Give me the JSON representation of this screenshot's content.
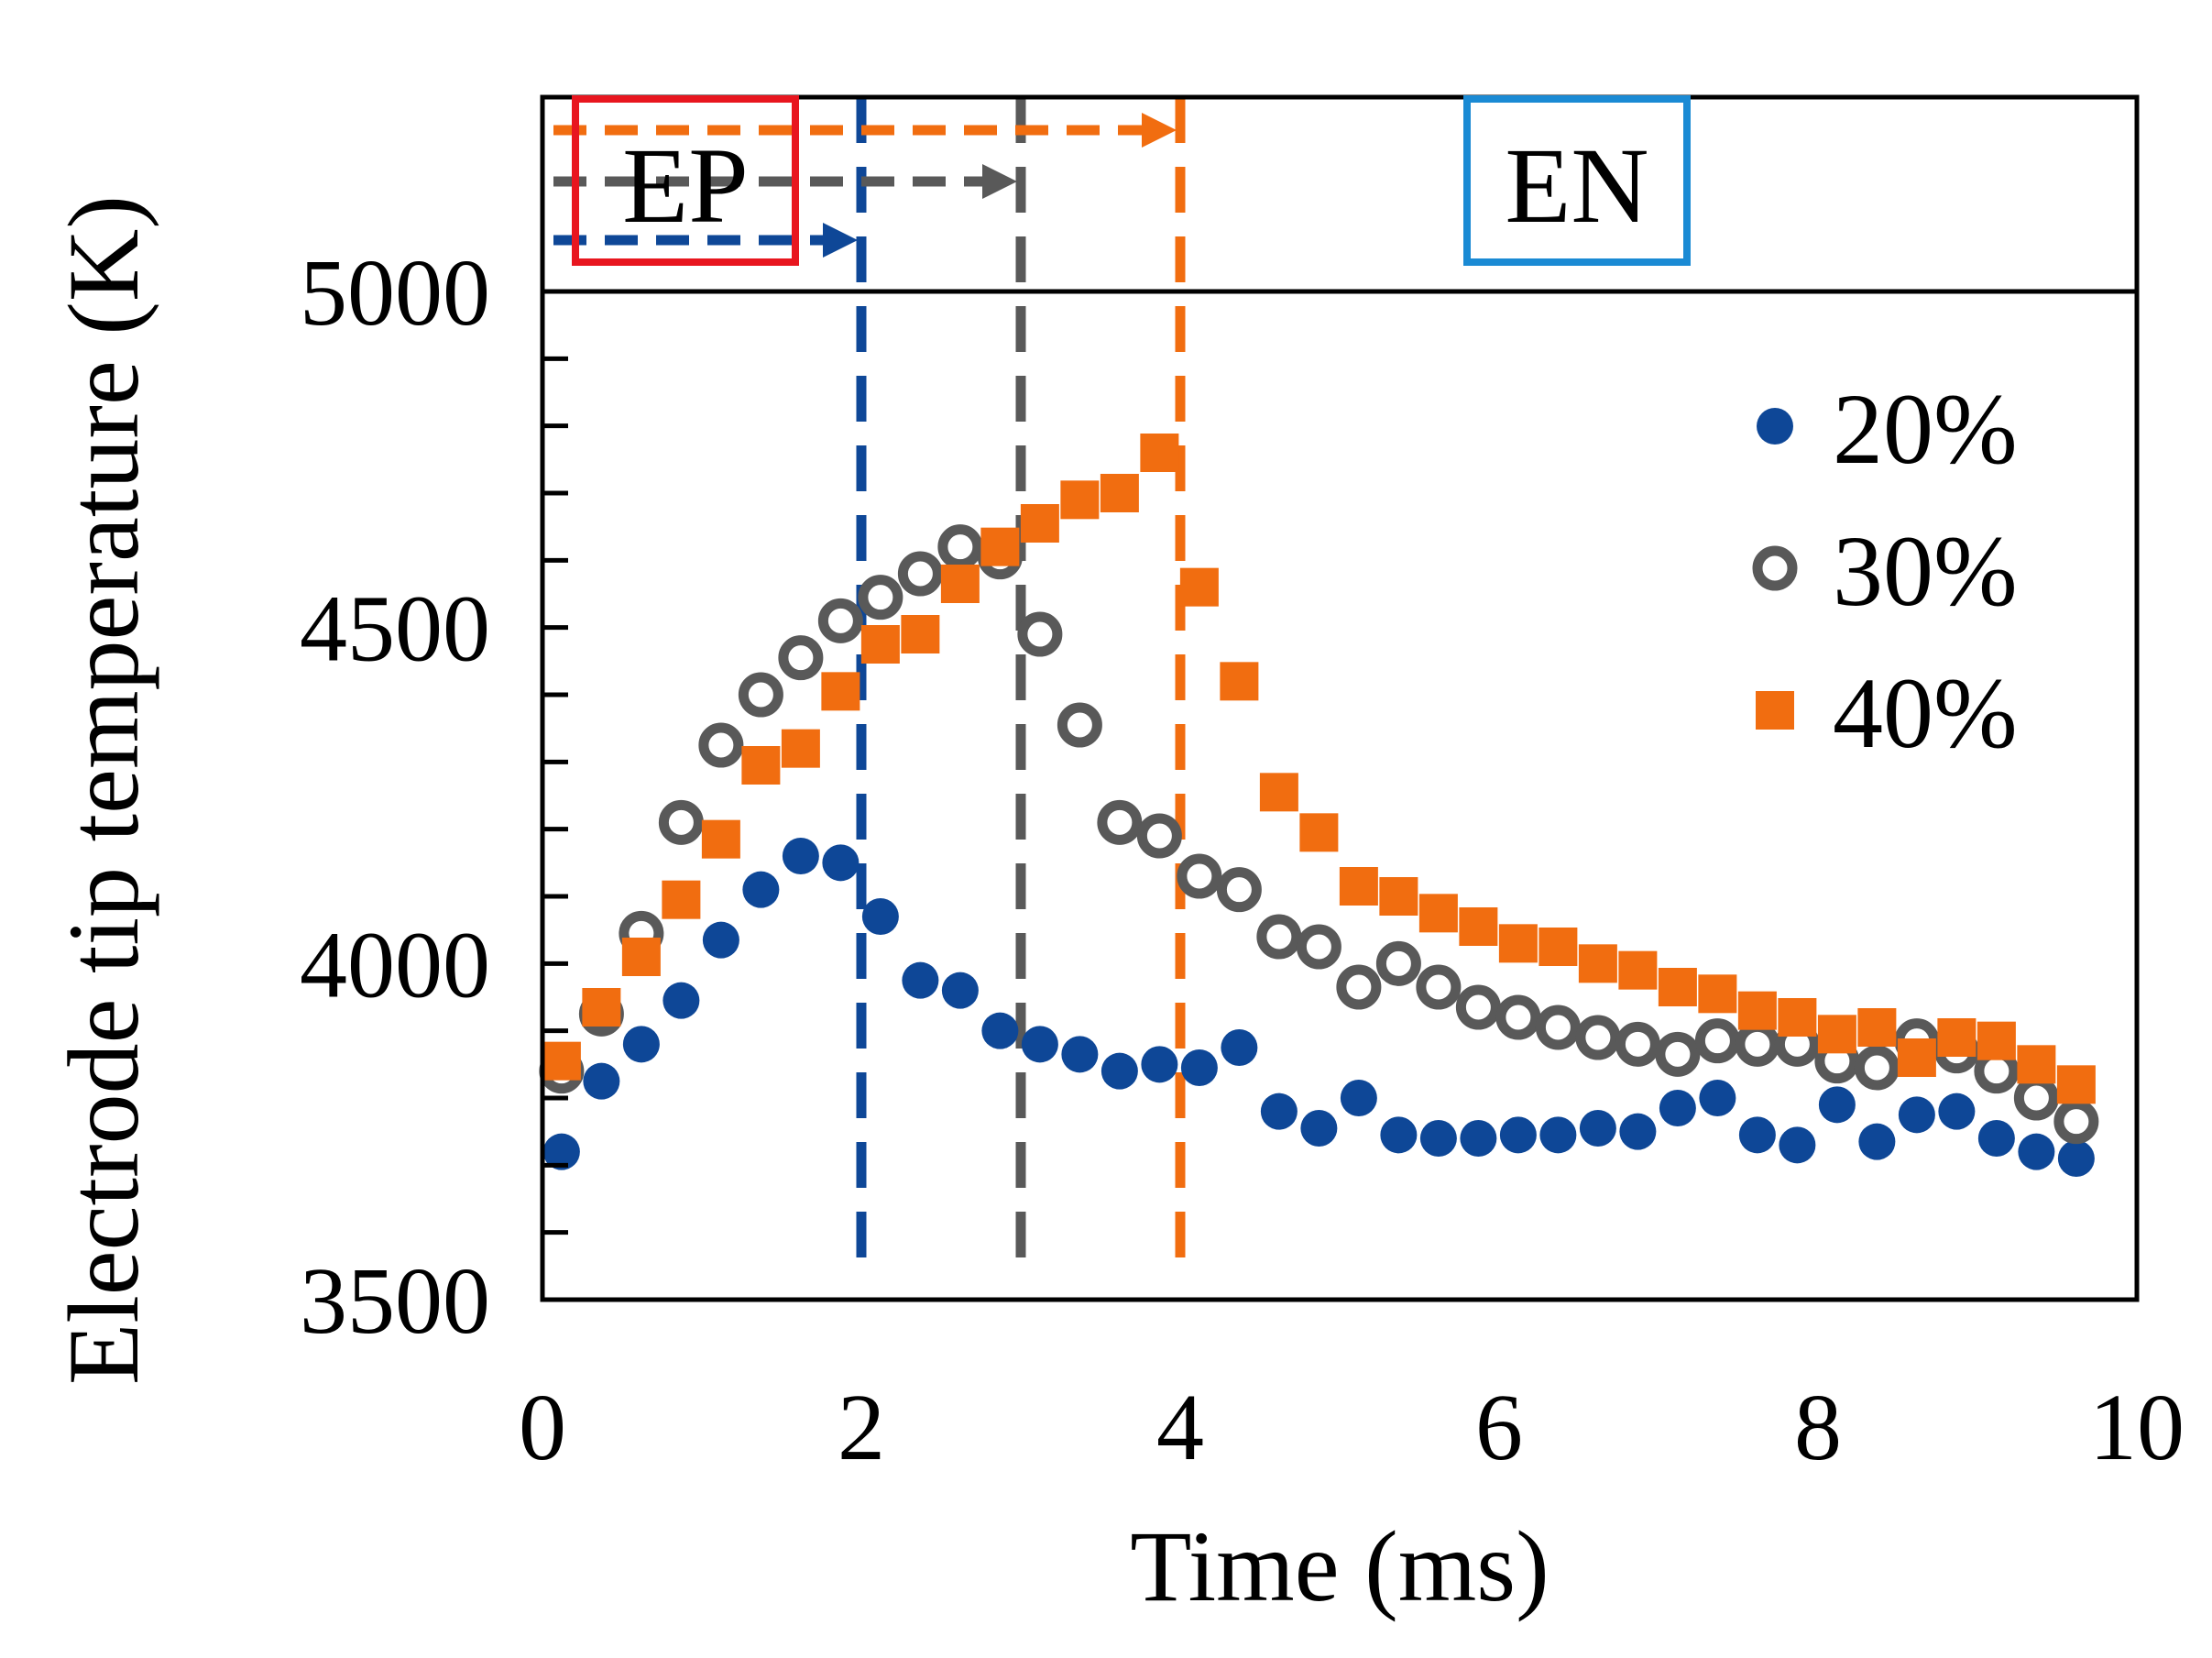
{
  "chart_data": {
    "type": "scatter",
    "title": "",
    "xlabel": "Time (ms)",
    "ylabel": "Electrode tip temperature (K)",
    "xlim": [
      0,
      10
    ],
    "ylim": [
      3500,
      5000
    ],
    "xticks": [
      0,
      2,
      4,
      6,
      8,
      10
    ],
    "yticks": [
      3500,
      4000,
      4500,
      5000
    ],
    "x_tick_labels": [
      "0",
      "2",
      "4",
      "6",
      "8",
      "10"
    ],
    "y_tick_labels": [
      "3500",
      "4000",
      "4500",
      "5000"
    ],
    "legend_position": "right",
    "series": [
      {
        "name": "20%",
        "color": "#0e4797",
        "marker": "filled-circle",
        "ep_end_ms": 2,
        "x": [
          0.12,
          0.37,
          0.62,
          0.87,
          1.12,
          1.37,
          1.62,
          1.87,
          2.12,
          2.37,
          2.62,
          2.87,
          3.12,
          3.37,
          3.62,
          3.87,
          4.12,
          4.37,
          4.62,
          4.87,
          5.12,
          5.37,
          5.62,
          5.87,
          6.12,
          6.37,
          6.62,
          6.87,
          7.12,
          7.37,
          7.62,
          7.87,
          8.12,
          8.37,
          8.62,
          8.87,
          9.12,
          9.37,
          9.62
        ],
        "values": [
          3720,
          3825,
          3880,
          3945,
          4035,
          4110,
          4160,
          4150,
          4070,
          3975,
          3960,
          3900,
          3880,
          3865,
          3840,
          3850,
          3845,
          3875,
          3780,
          3755,
          3800,
          3745,
          3740,
          3740,
          3745,
          3745,
          3755,
          3750,
          3785,
          3800,
          3745,
          3730,
          3790,
          3735,
          3775,
          3780,
          3740,
          3720,
          3710
        ]
      },
      {
        "name": "30%",
        "color": "#595959",
        "marker": "open-circle",
        "ep_end_ms": 3,
        "x": [
          0.12,
          0.37,
          0.62,
          0.87,
          1.12,
          1.37,
          1.62,
          1.87,
          2.12,
          2.37,
          2.62,
          2.87,
          3.12,
          3.37,
          3.62,
          3.87,
          4.12,
          4.37,
          4.62,
          4.87,
          5.12,
          5.37,
          5.62,
          5.87,
          6.12,
          6.37,
          6.62,
          6.87,
          7.12,
          7.37,
          7.62,
          7.87,
          8.12,
          8.37,
          8.62,
          8.87,
          9.12,
          9.37,
          9.62
        ],
        "values": [
          3840,
          3925,
          4045,
          4210,
          4325,
          4400,
          4455,
          4510,
          4545,
          4580,
          4620,
          4605,
          4490,
          4355,
          4210,
          4190,
          4130,
          4110,
          4040,
          4025,
          3965,
          4000,
          3965,
          3935,
          3920,
          3905,
          3890,
          3880,
          3865,
          3885,
          3880,
          3880,
          3855,
          3845,
          3885,
          3870,
          3840,
          3800,
          3765
        ]
      },
      {
        "name": "40%",
        "color": "#f16d10",
        "marker": "filled-square",
        "ep_end_ms": 4,
        "x": [
          0.12,
          0.37,
          0.62,
          0.87,
          1.12,
          1.37,
          1.62,
          1.87,
          2.12,
          2.37,
          2.62,
          2.87,
          3.12,
          3.37,
          3.62,
          3.87,
          4.12,
          4.37,
          4.62,
          4.87,
          5.12,
          5.37,
          5.62,
          5.87,
          6.12,
          6.37,
          6.62,
          6.87,
          7.12,
          7.37,
          7.62,
          7.87,
          8.12,
          8.37,
          8.62,
          8.87,
          9.12,
          9.37,
          9.62
        ],
        "values": [
          3855,
          3935,
          4010,
          4095,
          4185,
          4295,
          4320,
          4405,
          4475,
          4490,
          4565,
          4620,
          4655,
          4690,
          4700,
          4760,
          4560,
          4420,
          4255,
          4195,
          4115,
          4100,
          4075,
          4055,
          4030,
          4025,
          4000,
          3990,
          3965,
          3955,
          3930,
          3920,
          3895,
          3905,
          3860,
          3890,
          3885,
          3850,
          3820
        ]
      }
    ],
    "annotations": {
      "ep_label": "EP",
      "en_label": "EN",
      "ep_color": "#e8161f",
      "en_color": "#1a8ad4"
    }
  }
}
